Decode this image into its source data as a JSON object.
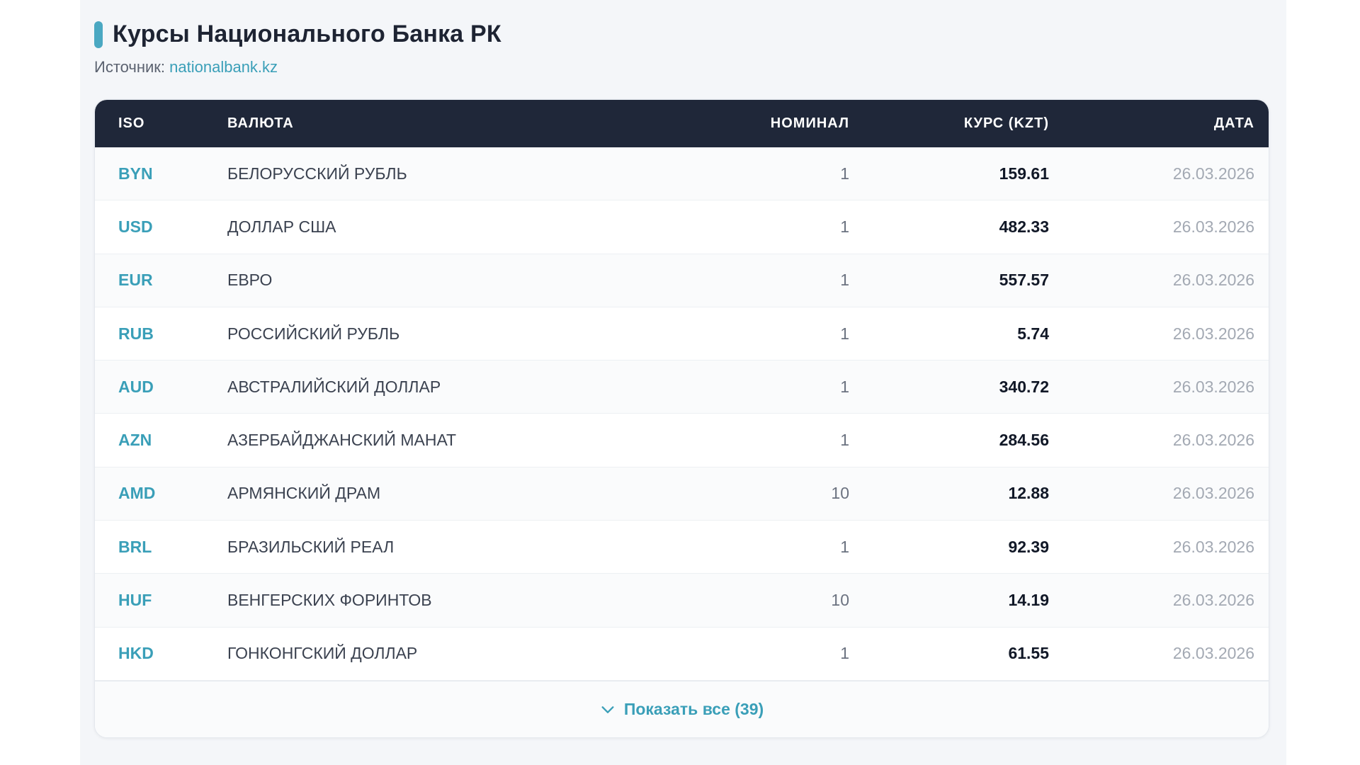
{
  "header": {
    "title": "Курсы Национального Банка РК",
    "source_label": "Источник:",
    "source_link": "nationalbank.kz"
  },
  "table": {
    "columns": {
      "iso": "ISO",
      "currency": "ВАЛЮТА",
      "nominal": "НОМИНАЛ",
      "rate": "КУРС (KZT)",
      "date": "ДАТА"
    },
    "rows": [
      {
        "iso": "BYN",
        "name": "БЕЛОРУССКИЙ РУБЛЬ",
        "nominal": "1",
        "rate": "159.61",
        "date": "26.03.2026"
      },
      {
        "iso": "USD",
        "name": "ДОЛЛАР США",
        "nominal": "1",
        "rate": "482.33",
        "date": "26.03.2026"
      },
      {
        "iso": "EUR",
        "name": "ЕВРО",
        "nominal": "1",
        "rate": "557.57",
        "date": "26.03.2026"
      },
      {
        "iso": "RUB",
        "name": "РОССИЙСКИЙ РУБЛЬ",
        "nominal": "1",
        "rate": "5.74",
        "date": "26.03.2026"
      },
      {
        "iso": "AUD",
        "name": "АВСТРАЛИЙСКИЙ ДОЛЛАР",
        "nominal": "1",
        "rate": "340.72",
        "date": "26.03.2026"
      },
      {
        "iso": "AZN",
        "name": "АЗЕРБАЙДЖАНСКИЙ МАНАТ",
        "nominal": "1",
        "rate": "284.56",
        "date": "26.03.2026"
      },
      {
        "iso": "AMD",
        "name": "АРМЯНСКИЙ ДРАМ",
        "nominal": "10",
        "rate": "12.88",
        "date": "26.03.2026"
      },
      {
        "iso": "BRL",
        "name": "БРАЗИЛЬСКИЙ РЕАЛ",
        "nominal": "1",
        "rate": "92.39",
        "date": "26.03.2026"
      },
      {
        "iso": "HUF",
        "name": "ВЕНГЕРСКИХ ФОРИНТОВ",
        "nominal": "10",
        "rate": "14.19",
        "date": "26.03.2026"
      },
      {
        "iso": "HKD",
        "name": "ГОНКОНГСКИЙ ДОЛЛАР",
        "nominal": "1",
        "rate": "61.55",
        "date": "26.03.2026"
      }
    ]
  },
  "footer": {
    "show_all_label": "Показать все (39)",
    "icon": "chevron-down-icon"
  },
  "colors": {
    "accent": "#3a9fb8",
    "header_bg": "#1f2739",
    "panel_bg": "#f4f6f9"
  }
}
